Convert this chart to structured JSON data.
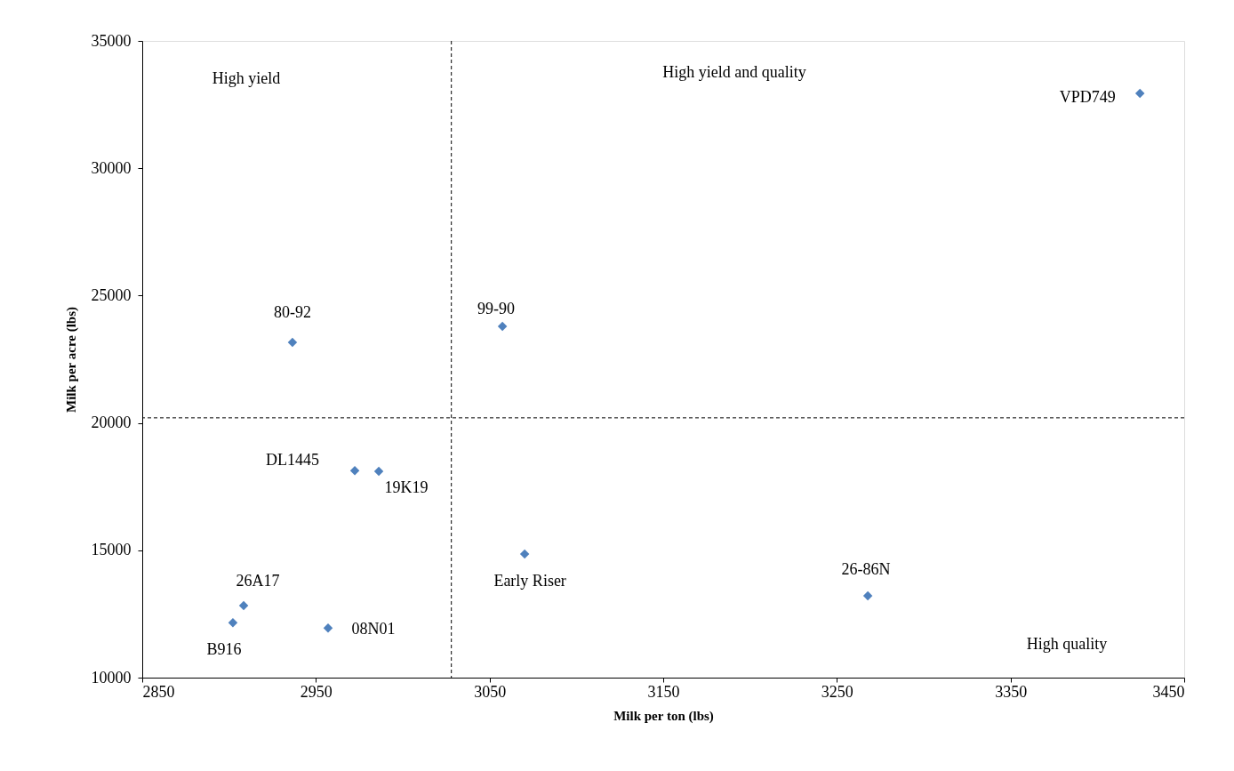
{
  "chart_data": {
    "type": "scatter",
    "xlabel": "Milk per ton (lbs)",
    "ylabel": "Milk per acre (lbs)",
    "x": [
      3424.5,
      2936.5,
      3057.4,
      2972.4,
      2986.2,
      3070.2,
      3267.8,
      2908.4,
      2902.2,
      2957.0
    ],
    "series": [
      {
        "color": "#4f81bd",
        "values": [
          32940,
          23160,
          23790,
          18130,
          18100,
          14850,
          13210,
          12830,
          12160,
          11950
        ]
      }
    ],
    "marker": "diamond",
    "grid": false,
    "xlim": [
      2850,
      3450
    ],
    "xticks": [
      2850,
      2950,
      3050,
      3150,
      3250,
      3350,
      3450
    ],
    "ylim": [
      10000,
      35000
    ],
    "yticks": [
      10000,
      15000,
      20000,
      25000,
      30000,
      35000
    ],
    "ref_lines": [
      {
        "axis": "x",
        "value": 3028,
        "line_style": "dashed",
        "color": "#000000"
      },
      {
        "axis": "y",
        "value": 20200,
        "line_style": "dashed",
        "color": "#000000"
      }
    ],
    "annotations": [
      {
        "text": "VPD749",
        "x": 3424.5,
        "y": 32940
      },
      {
        "text": "80-92",
        "x": 2936.5,
        "y": 23160
      },
      {
        "text": "99-90",
        "x": 3057.4,
        "y": 23790
      },
      {
        "text": "DL1445",
        "x": 2972.4,
        "y": 18130
      },
      {
        "text": "19K19",
        "x": 2986.2,
        "y": 18100
      },
      {
        "text": "Early Riser",
        "x": 3070.2,
        "y": 14850
      },
      {
        "text": "26-86N",
        "x": 3267.8,
        "y": 13210
      },
      {
        "text": "26A17",
        "x": 2908.4,
        "y": 12830
      },
      {
        "text": "B916",
        "x": 2902.2,
        "y": 12160
      },
      {
        "text": "08N01",
        "x": 2957.0,
        "y": 11950
      },
      "High yield",
      "High yield and quality",
      "High quality"
    ]
  }
}
